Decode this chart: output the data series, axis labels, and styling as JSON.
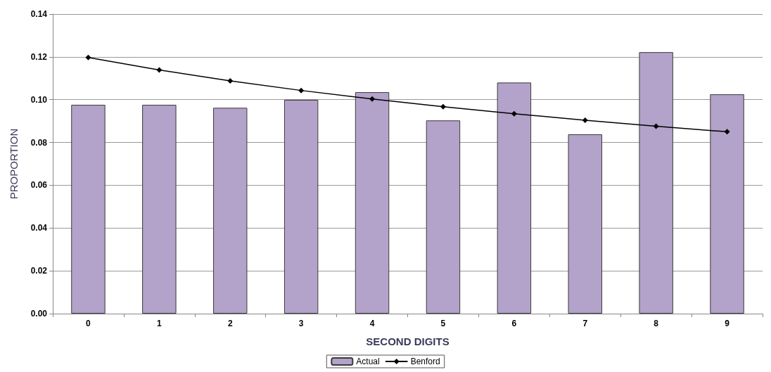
{
  "chart_data": {
    "type": "bar",
    "xlabel": "SECOND DIGITS",
    "ylabel": "PROPORTION",
    "categories": [
      "0",
      "1",
      "2",
      "3",
      "4",
      "5",
      "6",
      "7",
      "8",
      "9"
    ],
    "series": [
      {
        "name": "Actual",
        "color": "#b3a2c9",
        "values": [
          0.0976,
          0.0976,
          0.0962,
          0.0999,
          0.1035,
          0.0903,
          0.108,
          0.0838,
          0.1222,
          0.1025
        ]
      },
      {
        "name": "Benford",
        "type": "line",
        "color": "#000000",
        "values": [
          0.1197,
          0.1139,
          0.1088,
          0.1043,
          0.1003,
          0.0967,
          0.0934,
          0.0904,
          0.0876,
          0.085
        ]
      }
    ],
    "ylim": [
      0,
      0.14
    ],
    "yticks": [
      {
        "value": 0,
        "label": "0.00"
      },
      {
        "value": 0.02,
        "label": "0.02"
      },
      {
        "value": 0.04,
        "label": "0.04"
      },
      {
        "value": 0.06,
        "label": "0.06"
      },
      {
        "value": 0.08,
        "label": "0.08"
      },
      {
        "value": 0.1,
        "label": "0.10"
      },
      {
        "value": 0.12,
        "label": "0.12"
      },
      {
        "value": 0.14,
        "label": "0.14"
      }
    ],
    "grid": "y",
    "legend": "bottom",
    "marker": "diamond",
    "line_style": "solid"
  }
}
